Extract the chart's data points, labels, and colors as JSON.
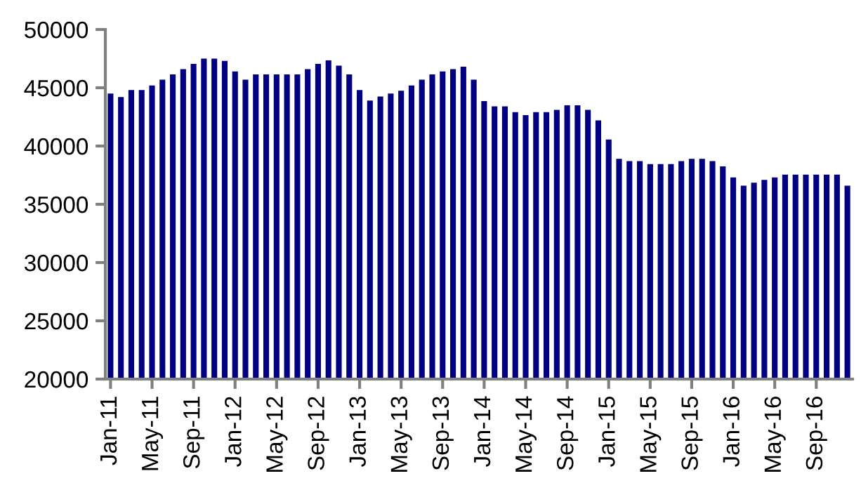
{
  "chart_data": {
    "type": "bar",
    "categories": [
      "Jan-11",
      null,
      null,
      null,
      "May-11",
      null,
      null,
      null,
      "Sep-11",
      null,
      null,
      null,
      "Jan-12",
      null,
      null,
      null,
      "May-12",
      null,
      null,
      null,
      "Sep-12",
      null,
      null,
      null,
      "Jan-13",
      null,
      null,
      null,
      "May-13",
      null,
      null,
      null,
      "Sep-13",
      null,
      null,
      null,
      "Jan-14",
      null,
      null,
      null,
      "May-14",
      null,
      null,
      null,
      "Sep-14",
      null,
      null,
      null,
      "Jan-15",
      null,
      null,
      null,
      "May-15",
      null,
      null,
      null,
      "Sep-15",
      null,
      null,
      null,
      "Jan-16",
      null,
      null,
      null,
      "May-16",
      null,
      null,
      null,
      "Sep-16",
      null,
      null,
      null
    ],
    "values": [
      44500,
      44200,
      44800,
      44800,
      45200,
      45700,
      46150,
      46600,
      47050,
      47500,
      47500,
      47300,
      46400,
      45700,
      46150,
      46150,
      46150,
      46150,
      46150,
      46600,
      47050,
      47350,
      46900,
      46150,
      44800,
      43900,
      44250,
      44500,
      44750,
      45200,
      45700,
      46150,
      46400,
      46600,
      46800,
      45700,
      43850,
      43400,
      43400,
      42900,
      42650,
      42900,
      42900,
      43100,
      43500,
      43500,
      43100,
      42200,
      40550,
      38900,
      38700,
      38700,
      38450,
      38450,
      38450,
      38700,
      38900,
      38900,
      38700,
      38250,
      37300,
      36600,
      36850,
      37100,
      37300,
      37550,
      37550,
      37550,
      37550,
      37550,
      37550,
      36600
    ],
    "color": "#000080",
    "ylim": [
      20000,
      50000
    ],
    "yticks": [
      20000,
      25000,
      30000,
      35000,
      40000,
      45000,
      50000
    ],
    "grid": false,
    "legend": false
  }
}
